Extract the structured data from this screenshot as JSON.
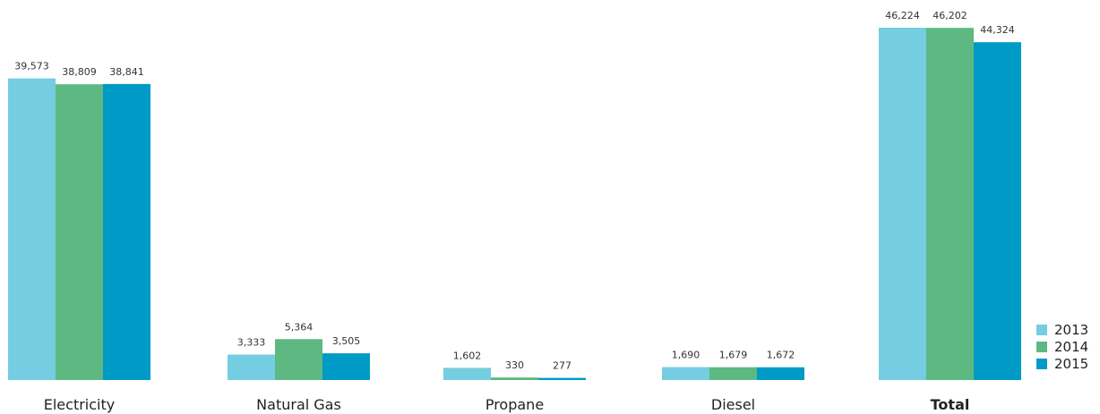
{
  "chart_data": {
    "type": "bar",
    "title": "",
    "xlabel": "",
    "ylabel": "",
    "ylim": [
      0,
      46224
    ],
    "grid": false,
    "legend_placement": "bottom-right",
    "categories": [
      "Electricity",
      "Natural Gas",
      "Propane",
      "Diesel",
      "Total"
    ],
    "bold_categories": [
      "Total"
    ],
    "series": [
      {
        "name": "2013",
        "color": "#74CDE0",
        "values": [
          39573,
          3333,
          1602,
          1690,
          46224
        ],
        "labels": [
          "39,573",
          "3,333",
          "1,602",
          "1,690",
          "46,224"
        ]
      },
      {
        "name": "2014",
        "color": "#5EB881",
        "values": [
          38809,
          5364,
          330,
          1679,
          46202
        ],
        "labels": [
          "38,809",
          "5,364",
          "330",
          "1,679",
          "46,202"
        ]
      },
      {
        "name": "2015",
        "color": "#009AC7",
        "values": [
          38841,
          3505,
          277,
          1672,
          44324
        ],
        "labels": [
          "38,841",
          "3,505",
          "277",
          "1,672",
          "44,324"
        ]
      }
    ]
  }
}
